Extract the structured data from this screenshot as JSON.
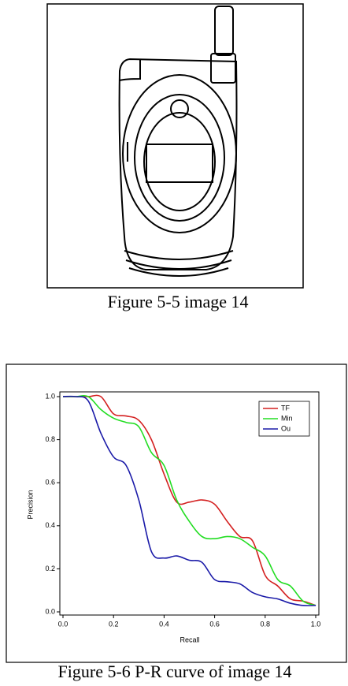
{
  "captions": [
    "Figure 5-5 image 14",
    "Figure 5-6 P-R curve of image 14"
  ],
  "chart_data": {
    "type": "line",
    "x_label": "Recall",
    "y_label": "Precision",
    "x": [
      0,
      0.05,
      0.1,
      0.15,
      0.2,
      0.25,
      0.3,
      0.35,
      0.4,
      0.45,
      0.5,
      0.55,
      0.6,
      0.65,
      0.7,
      0.75,
      0.8,
      0.85,
      0.9,
      0.95,
      1.0
    ],
    "series": [
      {
        "name": "TF",
        "color": "#d42020",
        "values": [
          1.0,
          1.0,
          1.0,
          1.0,
          0.92,
          0.91,
          0.89,
          0.8,
          0.64,
          0.51,
          0.51,
          0.52,
          0.5,
          0.42,
          0.35,
          0.33,
          0.17,
          0.12,
          0.06,
          0.05,
          0.03
        ]
      },
      {
        "name": "Min",
        "color": "#22dd22",
        "values": [
          1.0,
          1.0,
          1.0,
          0.94,
          0.9,
          0.88,
          0.86,
          0.74,
          0.68,
          0.52,
          0.42,
          0.35,
          0.34,
          0.35,
          0.34,
          0.3,
          0.26,
          0.15,
          0.12,
          0.05,
          0.03
        ]
      },
      {
        "name": "Ou",
        "color": "#1a1aa8",
        "values": [
          1.0,
          1.0,
          0.98,
          0.83,
          0.72,
          0.68,
          0.52,
          0.28,
          0.25,
          0.26,
          0.24,
          0.23,
          0.15,
          0.14,
          0.13,
          0.09,
          0.07,
          0.06,
          0.04,
          0.03,
          0.03
        ]
      }
    ],
    "xlim": [
      0,
      1
    ],
    "ylim": [
      0,
      1
    ],
    "xticks": [
      {
        "value": 0,
        "label": "0.0"
      },
      0.2,
      0.4,
      0.6,
      0.8,
      {
        "value": 1,
        "label": "1.0"
      }
    ],
    "yticks": [
      {
        "value": 0,
        "label": "0.0"
      },
      0.2,
      0.4,
      0.6,
      0.8,
      {
        "value": 1,
        "label": "1.0"
      }
    ],
    "grid": false,
    "legend": "top-right"
  }
}
